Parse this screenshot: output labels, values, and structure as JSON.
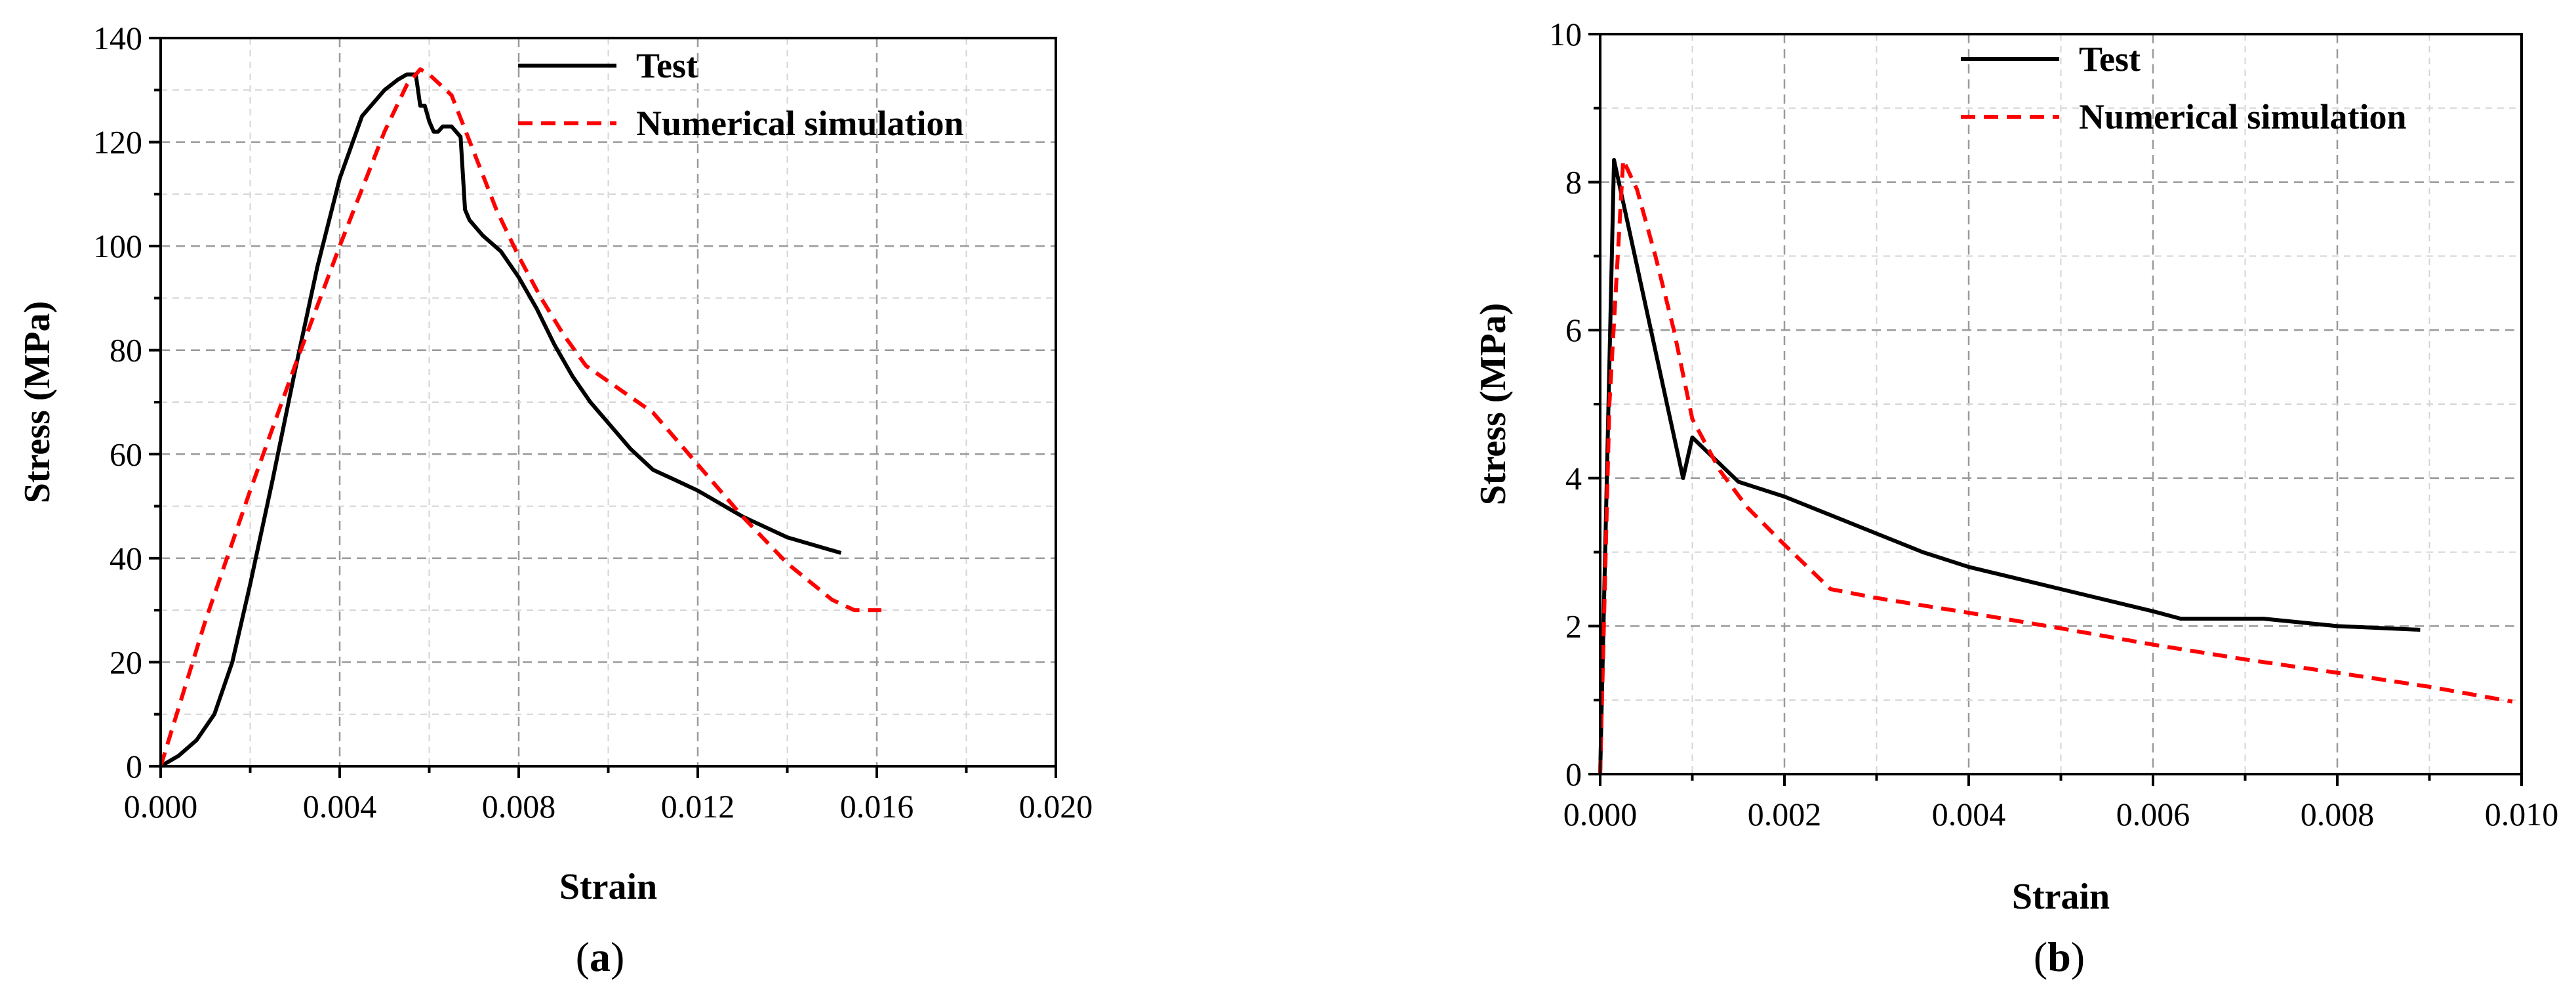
{
  "colors": {
    "test": "#000000",
    "simulation": "#ff0000"
  },
  "chart_data": [
    {
      "panel_label": "a",
      "type": "line",
      "xlabel": "Strain",
      "ylabel": "Stress (MPa)",
      "xlim": [
        0,
        0.02
      ],
      "ylim": [
        0,
        140
      ],
      "xticks": [
        "0.000",
        "0.004",
        "0.008",
        "0.012",
        "0.016",
        "0.020"
      ],
      "yticks": [
        "0",
        "20",
        "40",
        "60",
        "80",
        "100",
        "120",
        "140"
      ],
      "grid": true,
      "legend": {
        "placement": "top-right",
        "entries": [
          "Test",
          "Numerical simulation"
        ]
      },
      "series": [
        {
          "name": "Test",
          "style": "solid",
          "x": [
            0,
            0.0004,
            0.0008,
            0.0012,
            0.0016,
            0.002,
            0.0025,
            0.003,
            0.0035,
            0.004,
            0.0045,
            0.005,
            0.0053,
            0.0055,
            0.0057,
            0.0058,
            0.0059,
            0.006,
            0.0061,
            0.0062,
            0.0063,
            0.0065,
            0.0067,
            0.0068,
            0.0069,
            0.0072,
            0.0076,
            0.008,
            0.0084,
            0.0088,
            0.0092,
            0.0096,
            0.01,
            0.0105,
            0.011,
            0.0115,
            0.012,
            0.013,
            0.014,
            0.0152
          ],
          "y": [
            0,
            2,
            5,
            10,
            20,
            35,
            55,
            76,
            96,
            113,
            125,
            130,
            132,
            133,
            133,
            127,
            127,
            124,
            122,
            122,
            123,
            123,
            121,
            107,
            105,
            102,
            99,
            94,
            88,
            81,
            75,
            70,
            66,
            61,
            57,
            55,
            53,
            48,
            44,
            41
          ]
        },
        {
          "name": "Numerical simulation",
          "style": "dashed",
          "x": [
            0,
            0.001,
            0.002,
            0.003,
            0.004,
            0.005,
            0.0055,
            0.0058,
            0.006,
            0.0065,
            0.007,
            0.0075,
            0.008,
            0.0085,
            0.009,
            0.0095,
            0.01,
            0.011,
            0.012,
            0.013,
            0.014,
            0.015,
            0.0155,
            0.0161
          ],
          "y": [
            0,
            28,
            53,
            77,
            100,
            122,
            131,
            134,
            133,
            129,
            118,
            107,
            98,
            90,
            83,
            77,
            74,
            68,
            58,
            48,
            39,
            32,
            30,
            30
          ]
        }
      ]
    },
    {
      "panel_label": "b",
      "type": "line",
      "xlabel": "Strain",
      "ylabel": "Stress (MPa)",
      "xlim": [
        0,
        0.01
      ],
      "ylim": [
        0,
        10
      ],
      "xticks": [
        "0.000",
        "0.002",
        "0.004",
        "0.006",
        "0.008",
        "0.010"
      ],
      "yticks": [
        "0",
        "2",
        "4",
        "6",
        "8",
        "10"
      ],
      "grid": true,
      "legend": {
        "placement": "top-right",
        "entries": [
          "Test",
          "Numerical simulation"
        ]
      },
      "series": [
        {
          "name": "Test",
          "style": "solid",
          "x": [
            0,
            0.00015,
            0.0009,
            0.001,
            0.0015,
            0.002,
            0.0025,
            0.003,
            0.0035,
            0.004,
            0.005,
            0.006,
            0.0063,
            0.0072,
            0.008,
            0.0089
          ],
          "y": [
            0,
            8.3,
            4.0,
            4.55,
            3.95,
            3.75,
            3.5,
            3.25,
            3.0,
            2.8,
            2.5,
            2.2,
            2.1,
            2.1,
            2.0,
            1.95
          ]
        },
        {
          "name": "Numerical simulation",
          "style": "dashed",
          "x": [
            0,
            0.0001,
            0.00025,
            0.0004,
            0.0006,
            0.0008,
            0.001,
            0.0013,
            0.0016,
            0.002,
            0.0025,
            0.003,
            0.004,
            0.005,
            0.006,
            0.007,
            0.008,
            0.009,
            0.0099
          ],
          "y": [
            0,
            5.0,
            8.3,
            7.9,
            7.0,
            6.0,
            4.8,
            4.1,
            3.6,
            3.1,
            2.5,
            2.38,
            2.18,
            1.97,
            1.75,
            1.55,
            1.37,
            1.18,
            0.98
          ]
        }
      ]
    }
  ]
}
